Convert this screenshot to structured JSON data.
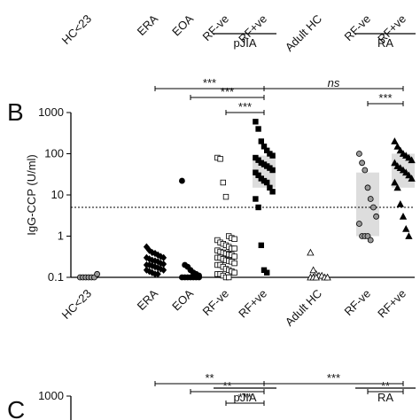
{
  "chart_data": [
    {
      "type": "scatter",
      "categories": [
        "HC<23",
        "ERA",
        "EOA",
        "RF-ve",
        "RF+ve",
        "Adult HC",
        "RF-ve",
        "RF+ve"
      ],
      "groups": [
        {
          "label": "pJIA",
          "from": 3,
          "to": 4
        },
        {
          "label": "RA",
          "from": 6,
          "to": 7
        }
      ]
    },
    {
      "type": "scatter",
      "panel": "B",
      "y_label": "IgG-CCP (U/ml)",
      "log_y": true,
      "categories": [
        "HC<23",
        "ERA",
        "EOA",
        "RF-ve",
        "RF+ve",
        "Adult HC",
        "RF-ve",
        "RF+ve"
      ],
      "groups": [
        {
          "label": "pJIA",
          "from": 3,
          "to": 4
        },
        {
          "label": "RA",
          "from": 6,
          "to": 7
        }
      ],
      "markers": [
        "circle",
        "diamond",
        "circle",
        "square",
        "square",
        "triangle",
        "circle",
        "triangle"
      ],
      "fills": [
        "#999",
        "#000",
        "#000",
        "#fff",
        "#000",
        "#fff",
        "#999",
        "#000"
      ],
      "points": [
        [
          0.1,
          0.1,
          0.1,
          0.1,
          0.1,
          0.1,
          0.12
        ],
        [
          0.55,
          0.45,
          0.4,
          0.38,
          0.35,
          0.32,
          0.3,
          0.3,
          0.28,
          0.26,
          0.25,
          0.24,
          0.22,
          0.21,
          0.2,
          0.2,
          0.19,
          0.18,
          0.17,
          0.16,
          0.15,
          0.15,
          0.14,
          0.13,
          0.12,
          0.12
        ],
        [
          22,
          0.2,
          0.18,
          0.15,
          0.13,
          0.12,
          0.11,
          0.1,
          0.1,
          0.1,
          0.1,
          0.1,
          0.1,
          0.1
        ],
        [
          80,
          75,
          20,
          9,
          1,
          0.9,
          0.85,
          0.8,
          0.7,
          0.65,
          0.6,
          0.55,
          0.5,
          0.5,
          0.45,
          0.42,
          0.4,
          0.38,
          0.36,
          0.35,
          0.32,
          0.3,
          0.3,
          0.28,
          0.26,
          0.25,
          0.24,
          0.22,
          0.2,
          0.2,
          0.18,
          0.16,
          0.15,
          0.14,
          0.13,
          0.12,
          0.12,
          0.11,
          0.1,
          0.1
        ],
        [
          600,
          400,
          200,
          150,
          120,
          100,
          90,
          80,
          70,
          60,
          55,
          50,
          45,
          40,
          35,
          30,
          25,
          22,
          20,
          15,
          12,
          8,
          5,
          0.6,
          0.15,
          0.13
        ],
        [
          0.4,
          0.15,
          0.12,
          0.11,
          0.11,
          0.1,
          0.1,
          0.1,
          0.1,
          0.1
        ],
        [
          100,
          60,
          40,
          15,
          8,
          5,
          3,
          2,
          1,
          1,
          1,
          0.8
        ],
        [
          200,
          150,
          120,
          100,
          90,
          80,
          70,
          60,
          50,
          45,
          40,
          35,
          30,
          25,
          20,
          15,
          6,
          3,
          1.5,
          1
        ]
      ],
      "boxes": [
        null,
        null,
        null,
        null,
        [
          15,
          90
        ],
        null,
        [
          1,
          35
        ],
        [
          15,
          100
        ]
      ],
      "reference_line": 5,
      "ylim": [
        0.1,
        1000
      ],
      "yticks": [
        1000,
        100,
        10,
        1,
        0.1
      ],
      "brackets": [
        {
          "label": "***",
          "from": 1,
          "to": 4
        },
        {
          "label": "***",
          "from": 2,
          "to": 4
        },
        {
          "label": "***",
          "from": 3,
          "to": 4
        },
        {
          "label": "ns",
          "from": 4,
          "to": 7
        },
        {
          "label": "***",
          "from": 6,
          "to": 7
        }
      ]
    },
    {
      "type": "scatter",
      "panel": "C",
      "yticks": [
        1000
      ],
      "brackets": [
        {
          "label": "**",
          "from": 1,
          "to": 4
        },
        {
          "label": "**",
          "from": 2,
          "to": 4
        },
        {
          "label": "***",
          "from": 3,
          "to": 4
        },
        {
          "label": "***",
          "from": 4,
          "to": 7
        },
        {
          "label": "**",
          "from": 6,
          "to": 7
        }
      ]
    }
  ]
}
